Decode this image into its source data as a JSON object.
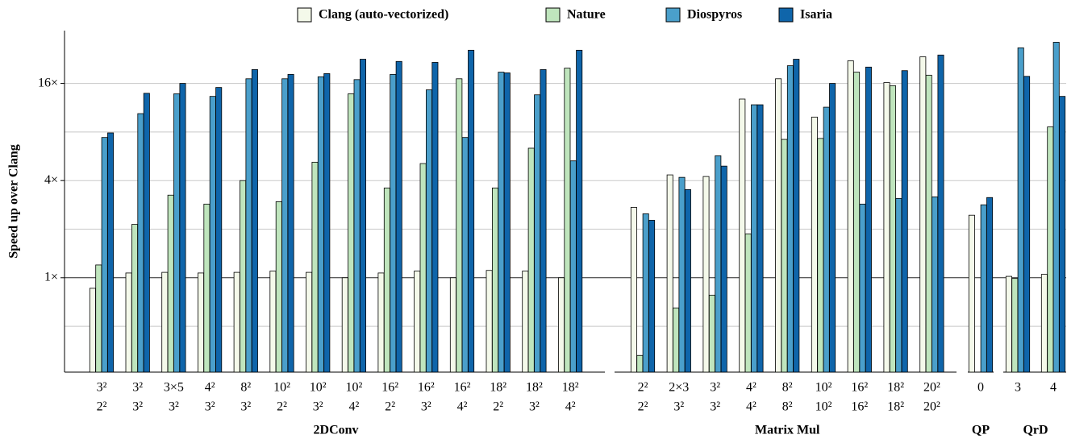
{
  "chart_data": {
    "type": "bar",
    "ylabel": "Speed up over Clang",
    "log_base": 2,
    "ylim": [
      0.26,
      34
    ],
    "yticks": [
      {
        "value": 1,
        "label": "1×"
      },
      {
        "value": 4,
        "label": "4×"
      },
      {
        "value": 16,
        "label": "16×"
      }
    ],
    "minor_grid": [
      0.5,
      2,
      8
    ],
    "reference_line": 1,
    "grid": true,
    "legend": "top",
    "series": [
      {
        "name": "Clang (auto-vectorized)",
        "color": "#f4f9ea"
      },
      {
        "name": "Nature",
        "color": "#bfe5bd"
      },
      {
        "name": "Diospyros",
        "color": "#4a9fcb"
      },
      {
        "name": "Isaria",
        "color": "#0f65aa"
      }
    ],
    "panels": [
      {
        "title": "2DConv",
        "categories": [
          [
            "3²",
            "2²"
          ],
          [
            "3²",
            "3²"
          ],
          [
            "3×5",
            "3²"
          ],
          [
            "4²",
            "3²"
          ],
          [
            "8²",
            "3²"
          ],
          [
            "10²",
            "2²"
          ],
          [
            "10²",
            "3²"
          ],
          [
            "10²",
            "4²"
          ],
          [
            "16²",
            "2²"
          ],
          [
            "16²",
            "3²"
          ],
          [
            "16²",
            "4²"
          ],
          [
            "18²",
            "2²"
          ],
          [
            "18²",
            "3²"
          ],
          [
            "18²",
            "4²"
          ]
        ],
        "series": [
          {
            "values": [
              0.86,
              1.07,
              1.08,
              1.07,
              1.08,
              1.1,
              1.08,
              1.0,
              1.07,
              1.1,
              1.0,
              1.11,
              1.1,
              1.0
            ]
          },
          {
            "values": [
              1.2,
              2.14,
              3.25,
              2.86,
              4.0,
              2.96,
              5.2,
              13.8,
              3.6,
              5.1,
              17.1,
              3.6,
              6.35,
              19.9
            ]
          },
          {
            "values": [
              7.4,
              10.4,
              13.8,
              13.3,
              17.1,
              17.1,
              17.6,
              16.9,
              18.2,
              14.6,
              7.4,
              18.8,
              13.6,
              5.3
            ]
          },
          {
            "values": [
              7.9,
              13.9,
              16.0,
              15.1,
              19.5,
              18.2,
              18.4,
              22.6,
              21.9,
              21.6,
              25.7,
              18.6,
              19.5,
              25.7
            ]
          }
        ]
      },
      {
        "title": "Matrix Mul",
        "categories": [
          [
            "2²",
            "2²"
          ],
          [
            "2×3",
            "3²"
          ],
          [
            "3²",
            "3²"
          ],
          [
            "4²",
            "4²"
          ],
          [
            "8²",
            "8²"
          ],
          [
            "10²",
            "10²"
          ],
          [
            "16²",
            "16²"
          ],
          [
            "18²",
            "18²"
          ],
          [
            "20²",
            "20²"
          ]
        ],
        "series": [
          {
            "values": [
              2.73,
              4.34,
              4.24,
              12.8,
              17.1,
              9.9,
              22.1,
              16.2,
              23.4
            ]
          },
          {
            "values": [
              0.33,
              0.65,
              0.78,
              1.87,
              7.2,
              7.3,
              18.8,
              15.5,
              18.0
            ]
          },
          {
            "values": [
              2.49,
              4.19,
              5.7,
              11.8,
              20.6,
              11.4,
              2.86,
              3.1,
              3.17
            ]
          },
          {
            "values": [
              2.27,
              3.52,
              4.92,
              11.8,
              22.6,
              16.0,
              20.2,
              19.2,
              24.0
            ]
          }
        ]
      },
      {
        "title": "QP",
        "categories": [
          [
            "0"
          ]
        ],
        "series": [
          {
            "values": [
              2.44
            ]
          },
          {
            "values": [
              null
            ]
          },
          {
            "values": [
              2.83
            ]
          },
          {
            "values": [
              3.14
            ]
          }
        ]
      },
      {
        "title": "QrD",
        "categories": [
          [
            "3"
          ],
          [
            "4"
          ]
        ],
        "series": [
          {
            "values": [
              1.02,
              1.05
            ]
          },
          {
            "values": [
              0.99,
              8.6
            ]
          },
          {
            "values": [
              26.6,
              28.8
            ]
          },
          {
            "values": [
              17.7,
              13.3
            ]
          }
        ]
      }
    ]
  }
}
